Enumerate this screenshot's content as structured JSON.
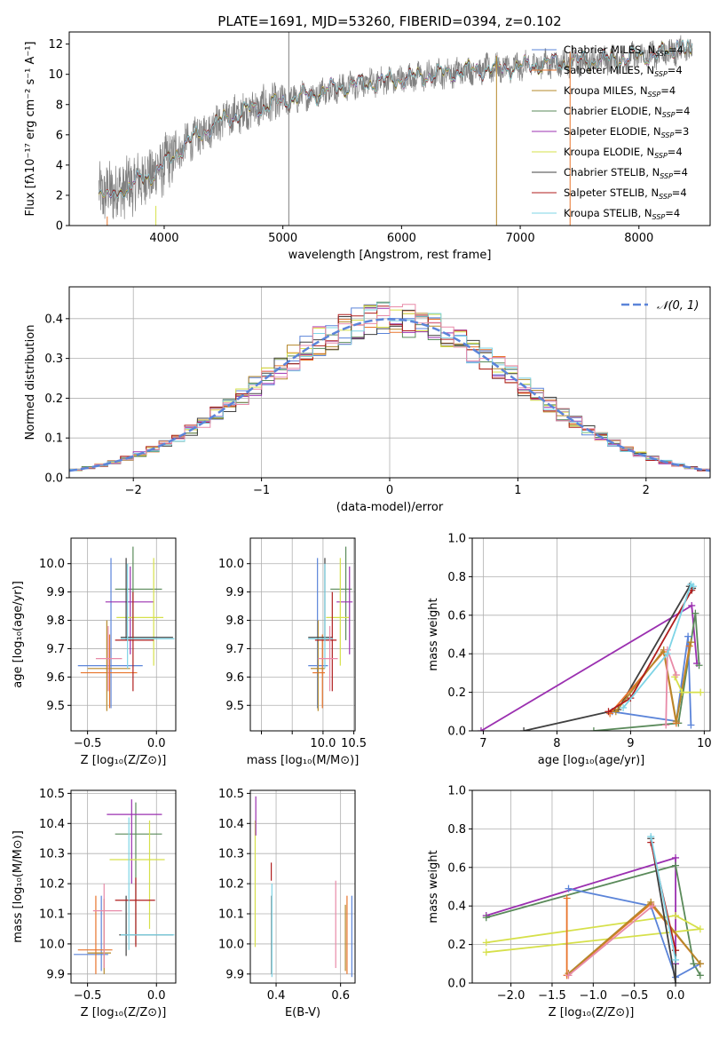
{
  "colors": {
    "Chabrier MILES": "#5b84d9",
    "Salpeter MILES": "#e8742b",
    "Kroupa MILES": "#b5882a",
    "Chabrier ELODIE": "#5a8a5a",
    "Salpeter ELODIE": "#9b30b0",
    "Kroupa ELODIE": "#d6e04a",
    "Chabrier STELIB": "#404040",
    "Salpeter STELIB": "#b01e1e",
    "Kroupa STELIB": "#7ed4e6",
    "normal": "#5b84d9",
    "pink": "#e88aa8",
    "data": "#808080"
  },
  "chart_data": [
    {
      "id": "spectrum",
      "type": "line",
      "title": "PLATE=1691, MJD=53260, FIBERID=0394, z=0.102",
      "xlabel": "wavelength [Angstrom, rest frame]",
      "ylabel": "Flux [fλ10⁻¹⁷ erg cm⁻² s⁻¹ A⁻¹]",
      "xlim": [
        3200,
        8600
      ],
      "ylim": [
        0,
        12.8
      ],
      "xticks": [
        4000,
        5000,
        6000,
        7000,
        8000
      ],
      "yticks": [
        0,
        2,
        4,
        6,
        8,
        10,
        12
      ],
      "continuum": {
        "x": [
          3450,
          3600,
          3700,
          3800,
          3900,
          4000,
          4100,
          4200,
          4300,
          4400,
          4500,
          4600,
          4700,
          4800,
          4900,
          5000,
          5200,
          5400,
          5600,
          5800,
          6000,
          6200,
          6400,
          6600,
          6800,
          7000,
          7200,
          7400,
          7600,
          7800,
          8000,
          8200,
          8400
        ],
        "y": [
          2.1,
          2.3,
          2.6,
          3.0,
          3.4,
          4.0,
          4.8,
          5.5,
          6.0,
          6.6,
          7.0,
          7.3,
          7.6,
          7.8,
          8.0,
          8.2,
          8.6,
          9.0,
          9.3,
          9.5,
          9.7,
          9.9,
          10.1,
          10.3,
          10.4,
          10.5,
          10.7,
          10.8,
          10.9,
          11.0,
          11.2,
          11.4,
          11.6
        ]
      },
      "spikes": [
        {
          "x": 5050,
          "y": 12.8,
          "color": "data"
        },
        {
          "x": 6800,
          "y": 11.2,
          "color": "Kroupa MILES"
        },
        {
          "x": 7420,
          "y": 11.5,
          "color": "Salpeter MILES"
        },
        {
          "x": 3520,
          "y": 0.6,
          "color": "Salpeter MILES"
        },
        {
          "x": 3930,
          "y": 1.3,
          "color": "Kroupa ELODIE"
        }
      ],
      "legend": [
        {
          "key": "Chabrier MILES",
          "label": "Chabrier MILES, N",
          "sub": "SSP",
          "tail": "=4"
        },
        {
          "key": "Salpeter MILES",
          "label": "Salpeter MILES, N",
          "sub": "SSP",
          "tail": "=4"
        },
        {
          "key": "Kroupa MILES",
          "label": "Kroupa MILES, N",
          "sub": "SSP",
          "tail": "=4"
        },
        {
          "key": "Chabrier ELODIE",
          "label": "Chabrier ELODIE, N",
          "sub": "SSP",
          "tail": "=4"
        },
        {
          "key": "Salpeter ELODIE",
          "label": "Salpeter ELODIE, N",
          "sub": "SSP",
          "tail": "=3"
        },
        {
          "key": "Kroupa ELODIE",
          "label": "Kroupa ELODIE, N",
          "sub": "SSP",
          "tail": "=4"
        },
        {
          "key": "Chabrier STELIB",
          "label": "Chabrier STELIB, N",
          "sub": "SSP",
          "tail": "=4"
        },
        {
          "key": "Salpeter STELIB",
          "label": "Salpeter STELIB, N",
          "sub": "SSP",
          "tail": "=4"
        },
        {
          "key": "Kroupa STELIB",
          "label": "Kroupa STELIB, N",
          "sub": "SSP",
          "tail": "=4"
        }
      ]
    },
    {
      "id": "residuals",
      "type": "histogram",
      "xlabel": "(data-model)/error",
      "ylabel": "Normed distribution",
      "xlim": [
        -2.5,
        2.5
      ],
      "ylim": [
        0,
        0.48
      ],
      "xticks": [
        -2,
        -1,
        0,
        1,
        2
      ],
      "xticklabels": [
        "−2",
        "−1",
        "0",
        "1",
        "2"
      ],
      "yticks": [
        0.0,
        0.1,
        0.2,
        0.3,
        0.4
      ],
      "bin_width": 0.1,
      "legend": [
        {
          "key": "normal",
          "label": "𝒩(0, 1)"
        }
      ]
    },
    {
      "id": "age_vs_Z",
      "type": "errorbar",
      "xlabel": "Z [log₁₀(Z/Z⊙)]",
      "ylabel": "age  [log₁₀(age/yr)]",
      "xlim": [
        -0.62,
        0.14
      ],
      "ylim": [
        9.41,
        10.09
      ],
      "xticks": [
        -0.5,
        0.0
      ],
      "xticklabels": [
        "−0.5",
        "0.0"
      ],
      "yticks": [
        9.5,
        9.6,
        9.7,
        9.8,
        9.9,
        10.0
      ],
      "points": [
        {
          "c": "Chabrier MILES",
          "x": -0.33,
          "xl": -0.57,
          "xh": -0.1,
          "y": 9.64,
          "yl": 9.49,
          "yh": 10.02
        },
        {
          "c": "Salpeter MILES",
          "x": -0.34,
          "xl": -0.55,
          "xh": -0.14,
          "y": 9.615,
          "yl": 9.49,
          "yh": 9.75
        },
        {
          "c": "Kroupa MILES",
          "x": -0.36,
          "xl": -0.5,
          "xh": -0.19,
          "y": 9.63,
          "yl": 9.48,
          "yh": 9.8
        },
        {
          "c": "Chabrier ELODIE",
          "x": -0.17,
          "xl": -0.3,
          "xh": 0.04,
          "y": 9.91,
          "yl": 9.73,
          "yh": 10.06
        },
        {
          "c": "Salpeter ELODIE",
          "x": -0.19,
          "xl": -0.37,
          "xh": -0.02,
          "y": 9.865,
          "yl": 9.68,
          "yh": 9.99
        },
        {
          "c": "Kroupa ELODIE",
          "x": -0.02,
          "xl": -0.29,
          "xh": 0.05,
          "y": 9.81,
          "yl": 9.64,
          "yh": 10.02
        },
        {
          "c": "Chabrier STELIB",
          "x": -0.22,
          "xl": -0.26,
          "xh": 0.12,
          "y": 9.74,
          "yl": 9.73,
          "yh": 10.02
        },
        {
          "c": "Salpeter STELIB",
          "x": -0.17,
          "xl": -0.3,
          "xh": -0.02,
          "y": 9.73,
          "yl": 9.55,
          "yh": 9.9
        },
        {
          "c": "Kroupa STELIB",
          "x": -0.21,
          "xl": -0.26,
          "xh": 0.13,
          "y": 9.735,
          "yl": 9.63,
          "yh": 10.0
        },
        {
          "c": "pink",
          "x": -0.35,
          "xl": -0.44,
          "xh": -0.25,
          "y": 9.665,
          "yl": 9.55,
          "yh": 9.78
        }
      ]
    },
    {
      "id": "age_vs_mass",
      "type": "errorbar",
      "xlabel": "mass [log₁₀(M/M⊙)]",
      "ylabel": "",
      "xlim": [
        8.82,
        10.52
      ],
      "ylim": [
        9.41,
        10.09
      ],
      "xticks": [
        9.0,
        9.5,
        10.0,
        10.5
      ],
      "xticklabels": [
        "",
        "",
        "10.0",
        "10.5"
      ],
      "yticks": [
        9.5,
        9.6,
        9.7,
        9.8,
        9.9,
        10.0
      ],
      "points": [
        {
          "c": "Chabrier MILES",
          "x": 9.91,
          "xl": 9.76,
          "xh": 10.08,
          "y": 9.64,
          "yl": 9.49,
          "yh": 10.02
        },
        {
          "c": "Salpeter MILES",
          "x": 9.99,
          "xl": 9.83,
          "xh": 10.03,
          "y": 9.615,
          "yl": 9.49,
          "yh": 9.75
        },
        {
          "c": "Kroupa MILES",
          "x": 9.92,
          "xl": 9.8,
          "xh": 10.03,
          "y": 9.63,
          "yl": 9.48,
          "yh": 9.8
        },
        {
          "c": "Chabrier ELODIE",
          "x": 10.37,
          "xl": 10.12,
          "xh": 10.47,
          "y": 9.91,
          "yl": 9.73,
          "yh": 10.06
        },
        {
          "c": "Salpeter ELODIE",
          "x": 10.43,
          "xl": 10.22,
          "xh": 10.48,
          "y": 9.865,
          "yl": 9.68,
          "yh": 9.99
        },
        {
          "c": "Kroupa ELODIE",
          "x": 10.28,
          "xl": 10.05,
          "xh": 10.42,
          "y": 9.81,
          "yl": 9.64,
          "yh": 10.02
        },
        {
          "c": "Chabrier STELIB",
          "x": 10.03,
          "xl": 9.76,
          "xh": 10.16,
          "y": 9.74,
          "yl": 9.73,
          "yh": 10.02
        },
        {
          "c": "Salpeter STELIB",
          "x": 10.15,
          "xl": 9.87,
          "xh": 10.22,
          "y": 9.73,
          "yl": 9.55,
          "yh": 9.9
        },
        {
          "c": "Kroupa STELIB",
          "x": 10.03,
          "xl": 9.76,
          "xh": 10.16,
          "y": 9.735,
          "yl": 9.63,
          "yh": 10.0
        },
        {
          "c": "pink",
          "x": 10.11,
          "xl": 9.92,
          "xh": 10.24,
          "y": 9.665,
          "yl": 9.55,
          "yh": 9.78
        }
      ]
    },
    {
      "id": "weight_vs_age",
      "type": "line",
      "xlabel": "age  [log₁₀(age/yr)]",
      "ylabel": "mass weight",
      "xlim": [
        6.85,
        10.08
      ],
      "ylim": [
        0,
        1.0
      ],
      "xticks": [
        7,
        8,
        9,
        10
      ],
      "yticks": [
        0.0,
        0.2,
        0.4,
        0.6,
        0.8,
        1.0
      ],
      "series": [
        {
          "c": "Salpeter ELODIE",
          "x": [
            6.97,
            9.83,
            9.9
          ],
          "y": [
            0.0,
            0.65,
            0.35
          ]
        },
        {
          "c": "Chabrier STELIB",
          "x": [
            7.55,
            8.83,
            9.8,
            9.84
          ],
          "y": [
            0.0,
            0.11,
            0.75,
            0.74
          ]
        },
        {
          "c": "Chabrier ELODIE",
          "x": [
            8.5,
            9.65,
            9.88,
            9.93
          ],
          "y": [
            0.0,
            0.04,
            0.61,
            0.34
          ]
        },
        {
          "c": "Chabrier MILES",
          "x": [
            8.75,
            9.62,
            9.78,
            9.82
          ],
          "y": [
            0.1,
            0.05,
            0.49,
            0.03
          ]
        },
        {
          "c": "Salpeter MILES",
          "x": [
            8.72,
            9.45,
            9.62,
            9.8
          ],
          "y": [
            0.09,
            0.41,
            0.04,
            0.44
          ]
        },
        {
          "c": "Kroupa MILES",
          "x": [
            8.8,
            9.45,
            9.62,
            9.82
          ],
          "y": [
            0.1,
            0.42,
            0.05,
            0.46
          ]
        },
        {
          "c": "Salpeter STELIB",
          "x": [
            8.7,
            9.0,
            9.83
          ],
          "y": [
            0.1,
            0.17,
            0.73
          ]
        },
        {
          "c": "Kroupa ELODIE",
          "x": [
            9.6,
            9.7,
            9.95
          ],
          "y": [
            0.28,
            0.2,
            0.2
          ]
        },
        {
          "c": "pink",
          "x": [
            9.48,
            9.5,
            9.62
          ],
          "y": [
            0.03,
            0.42,
            0.29
          ]
        },
        {
          "c": "Kroupa STELIB",
          "x": [
            8.9,
            9.5,
            9.82,
            9.85
          ],
          "y": [
            0.12,
            0.4,
            0.76,
            0.75
          ]
        }
      ]
    },
    {
      "id": "mass_vs_Z",
      "type": "errorbar",
      "xlabel": "Z [log₁₀(Z/Z⊙)]",
      "ylabel": "mass [log₁₀(M/M⊙)]",
      "xlim": [
        -0.62,
        0.14
      ],
      "ylim": [
        9.87,
        10.51
      ],
      "xticks": [
        -0.5,
        0.0
      ],
      "xticklabels": [
        "−0.5",
        "0.0"
      ],
      "yticks": [
        9.9,
        10.0,
        10.1,
        10.2,
        10.3,
        10.4,
        10.5
      ],
      "points": [
        {
          "c": "Chabrier MILES",
          "x": -0.4,
          "xl": -0.6,
          "xh": -0.35,
          "y": 9.965,
          "yl": 9.91,
          "yh": 10.16
        },
        {
          "c": "Salpeter MILES",
          "x": -0.44,
          "xl": -0.57,
          "xh": -0.32,
          "y": 9.98,
          "yl": 9.9,
          "yh": 10.16
        },
        {
          "c": "Kroupa MILES",
          "x": -0.38,
          "xl": -0.5,
          "xh": -0.33,
          "y": 9.97,
          "yl": 9.9,
          "yh": 10.15
        },
        {
          "c": "Chabrier ELODIE",
          "x": -0.15,
          "xl": -0.3,
          "xh": 0.04,
          "y": 10.365,
          "yl": 10.0,
          "yh": 10.47
        },
        {
          "c": "Salpeter ELODIE",
          "x": -0.18,
          "xl": -0.36,
          "xh": 0.04,
          "y": 10.43,
          "yl": 10.2,
          "yh": 10.48
        },
        {
          "c": "Kroupa ELODIE",
          "x": -0.05,
          "xl": -0.34,
          "xh": 0.06,
          "y": 10.28,
          "yl": 10.05,
          "yh": 10.41
        },
        {
          "c": "Chabrier STELIB",
          "x": -0.22,
          "xl": -0.27,
          "xh": 0.12,
          "y": 10.03,
          "yl": 9.96,
          "yh": 10.16
        },
        {
          "c": "Salpeter STELIB",
          "x": -0.15,
          "xl": -0.3,
          "xh": -0.01,
          "y": 10.145,
          "yl": 9.99,
          "yh": 10.22
        },
        {
          "c": "Kroupa STELIB",
          "x": -0.2,
          "xl": -0.26,
          "xh": 0.13,
          "y": 10.03,
          "yl": 9.98,
          "yh": 10.42
        },
        {
          "c": "pink",
          "x": -0.38,
          "xl": -0.46,
          "xh": -0.25,
          "y": 10.11,
          "yl": 9.92,
          "yh": 10.2
        }
      ]
    },
    {
      "id": "mass_vs_ebv",
      "type": "errorbar",
      "xlabel": "E(B-V)",
      "ylabel": "",
      "xlim": [
        0.32,
        0.645
      ],
      "ylim": [
        9.87,
        10.51
      ],
      "xticks": [
        0.4,
        0.6
      ],
      "xticklabels": [
        "0.4",
        "0.6"
      ],
      "yticks": [
        9.9,
        10.0,
        10.1,
        10.2,
        10.3,
        10.4,
        10.5
      ],
      "points": [
        {
          "c": "Kroupa ELODIE",
          "x": 0.335,
          "xl": 0.335,
          "xh": 0.335,
          "y": 10.27,
          "yl": 9.99,
          "yh": 10.41
        },
        {
          "c": "Salpeter ELODIE",
          "x": 0.337,
          "xl": 0.337,
          "xh": 0.337,
          "y": 10.43,
          "yl": 10.36,
          "yh": 10.49
        },
        {
          "c": "Salpeter STELIB",
          "x": 0.385,
          "xl": 0.385,
          "xh": 0.385,
          "y": 10.24,
          "yl": 10.21,
          "yh": 10.27
        },
        {
          "c": "Chabrier STELIB",
          "x": 0.386,
          "xl": 0.386,
          "xh": 0.386,
          "y": 10.03,
          "yl": 9.9,
          "yh": 10.16
        },
        {
          "c": "Kroupa STELIB",
          "x": 0.387,
          "xl": 0.387,
          "xh": 0.387,
          "y": 10.05,
          "yl": 9.89,
          "yh": 10.2
        },
        {
          "c": "pink",
          "x": 0.585,
          "xl": 0.585,
          "xh": 0.585,
          "y": 10.1,
          "yl": 9.92,
          "yh": 10.21
        },
        {
          "c": "Kroupa MILES",
          "x": 0.615,
          "xl": 0.615,
          "xh": 0.615,
          "y": 9.99,
          "yl": 9.91,
          "yh": 10.13
        },
        {
          "c": "Salpeter MILES",
          "x": 0.62,
          "xl": 0.62,
          "xh": 0.62,
          "y": 9.98,
          "yl": 9.9,
          "yh": 10.16
        },
        {
          "c": "Chabrier MILES",
          "x": 0.635,
          "xl": 0.635,
          "xh": 0.635,
          "y": 9.96,
          "yl": 9.89,
          "yh": 10.16
        }
      ]
    },
    {
      "id": "weight_vs_Z",
      "type": "line",
      "xlabel": "Z [log₁₀(Z/Z⊙)]",
      "ylabel": "mass weight",
      "xlim": [
        -2.47,
        0.42
      ],
      "ylim": [
        0,
        1.0
      ],
      "xticks": [
        -2.0,
        -1.5,
        -1.0,
        -0.5,
        0.0
      ],
      "xticklabels": [
        "−2.0",
        "−1.5",
        "−1.0",
        "−0.5",
        "0.0"
      ],
      "yticks": [
        0.0,
        0.2,
        0.4,
        0.6,
        0.8,
        1.0
      ],
      "series": [
        {
          "c": "Salpeter ELODIE",
          "x": [
            -2.3,
            0.0,
            0.0
          ],
          "y": [
            0.35,
            0.65,
            0.1
          ]
        },
        {
          "c": "Chabrier ELODIE",
          "x": [
            -2.3,
            0.0,
            0.22,
            0.3
          ],
          "y": [
            0.34,
            0.61,
            0.1,
            0.04
          ]
        },
        {
          "c": "Kroupa ELODIE",
          "x": [
            -2.3,
            0.0,
            0.3,
            -2.3
          ],
          "y": [
            0.21,
            0.35,
            0.28,
            0.16
          ]
        },
        {
          "c": "Chabrier MILES",
          "x": [
            -1.3,
            -0.3,
            0.0,
            0.3
          ],
          "y": [
            0.49,
            0.4,
            0.03,
            0.1
          ]
        },
        {
          "c": "Salpeter MILES",
          "x": [
            -1.32,
            -1.32,
            -0.3,
            0.3
          ],
          "y": [
            0.44,
            0.04,
            0.41,
            0.1
          ]
        },
        {
          "c": "Kroupa MILES",
          "x": [
            -1.3,
            -0.3,
            0.3
          ],
          "y": [
            0.05,
            0.42,
            0.1
          ]
        },
        {
          "c": "Chabrier STELIB",
          "x": [
            -0.3,
            0.0,
            0.0
          ],
          "y": [
            0.75,
            0.0,
            0.17
          ]
        },
        {
          "c": "Salpeter STELIB",
          "x": [
            -0.3,
            0.0
          ],
          "y": [
            0.73,
            0.17
          ]
        },
        {
          "c": "Kroupa STELIB",
          "x": [
            -0.3,
            0.0
          ],
          "y": [
            0.76,
            0.12
          ]
        },
        {
          "c": "pink",
          "x": [
            -1.3,
            -0.28
          ],
          "y": [
            0.04,
            0.4
          ]
        }
      ]
    }
  ]
}
